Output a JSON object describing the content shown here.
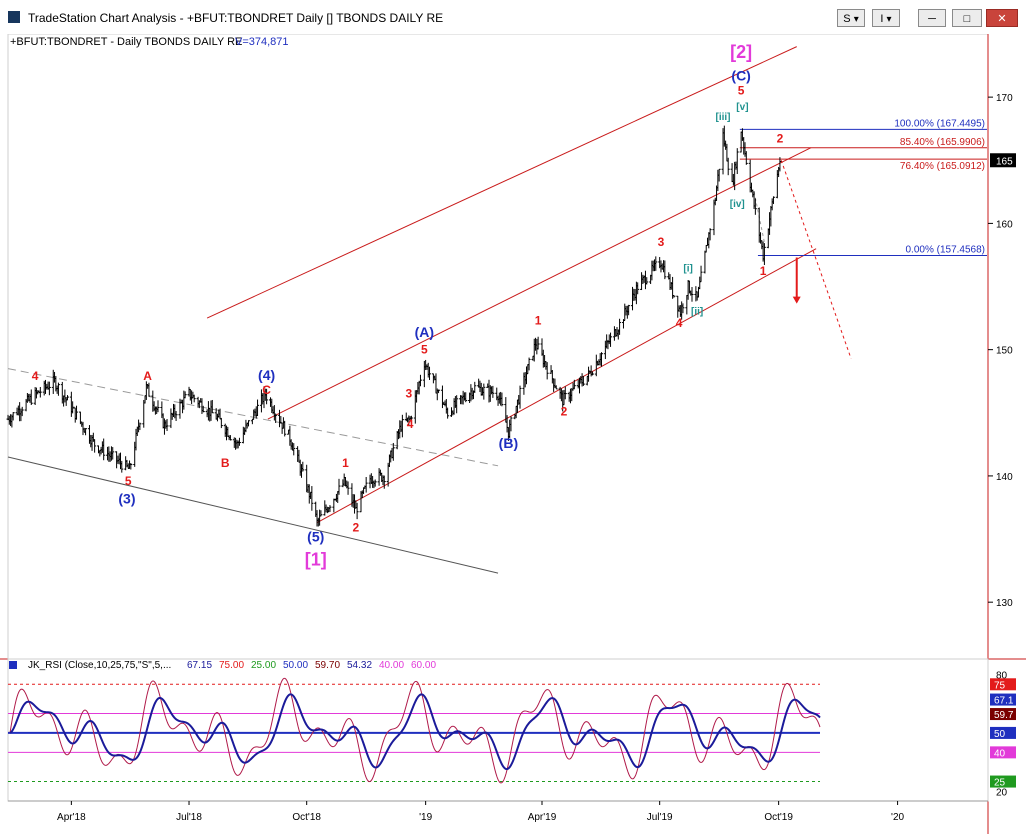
{
  "window": {
    "title": "TradeStation Chart Analysis - +BFUT:TBONDRET Daily [] TBONDS DAILY RE",
    "buttons": {
      "s_label": "S",
      "i_label": "I",
      "minimize_label": "─",
      "maximize_label": "□",
      "close_label": "✕"
    },
    "icons": [
      "app-icon",
      "dropdown-chevron-icon",
      "minimize-icon",
      "maximize-icon",
      "close-icon"
    ]
  },
  "chart_header": {
    "symbol": "+BFUT:TBONDRET - Daily  TBONDS DAILY RE",
    "volume": "V=374,871"
  },
  "colors": {
    "price_bar": "#000000",
    "wave_red": "#e31b1b",
    "wave_blue": "#1f2fbf",
    "wave_magenta": "#e23ad9",
    "wave_teal": "#20928f",
    "channel_red": "#c91b1b",
    "fib_blue": "#1f2fbf",
    "rsi_fast": "#b01b4a",
    "rsi_slow": "#1b1b9a"
  },
  "chart_data": [
    {
      "type": "line",
      "subtype": "ohlc-bars",
      "y_axis": {
        "side": "right",
        "ticks": [
          130,
          140,
          150,
          160,
          170
        ],
        "range": [
          125.5,
          175
        ],
        "current_price_label": "165"
      },
      "x_axis": {
        "ticks": [
          "Apr'18",
          "Jul'18",
          "Oct'18",
          "'19",
          "Apr'19",
          "Jul'19",
          "Oct'19",
          "'20"
        ]
      },
      "grid": false,
      "price_path": [
        {
          "x": "2018-02-12",
          "y": 144.5
        },
        {
          "x": "2018-03-06",
          "y": 146.5
        },
        {
          "x": "2018-03-20",
          "y": 147.5
        },
        {
          "x": "2018-04-20",
          "y": 142.5
        },
        {
          "x": "2018-05-17",
          "y": 140.5
        },
        {
          "x": "2018-05-30",
          "y": 147.0
        },
        {
          "x": "2018-06-13",
          "y": 144.0
        },
        {
          "x": "2018-07-02",
          "y": 146.5
        },
        {
          "x": "2018-07-25",
          "y": 144.5
        },
        {
          "x": "2018-08-08",
          "y": 142.5
        },
        {
          "x": "2018-08-30",
          "y": 146.5
        },
        {
          "x": "2018-09-18",
          "y": 143.0
        },
        {
          "x": "2018-10-05",
          "y": 138.0
        },
        {
          "x": "2018-10-09",
          "y": 136.3
        },
        {
          "x": "2018-10-30",
          "y": 139.5
        },
        {
          "x": "2018-11-08",
          "y": 137.3
        },
        {
          "x": "2018-11-19",
          "y": 139.8
        },
        {
          "x": "2018-11-30",
          "y": 140.0
        },
        {
          "x": "2018-12-13",
          "y": 144.0
        },
        {
          "x": "2018-12-20",
          "y": 144.5
        },
        {
          "x": "2018-12-31",
          "y": 149.0
        },
        {
          "x": "2019-01-18",
          "y": 145.0
        },
        {
          "x": "2019-02-08",
          "y": 147.0
        },
        {
          "x": "2019-02-26",
          "y": 146.5
        },
        {
          "x": "2019-03-06",
          "y": 143.5
        },
        {
          "x": "2019-03-27",
          "y": 150.5
        },
        {
          "x": "2019-04-17",
          "y": 146.0
        },
        {
          "x": "2019-05-07",
          "y": 148.0
        },
        {
          "x": "2019-05-31",
          "y": 152.0
        },
        {
          "x": "2019-06-14",
          "y": 155.0
        },
        {
          "x": "2019-07-02",
          "y": 157.0
        },
        {
          "x": "2019-07-17",
          "y": 153.0
        },
        {
          "x": "2019-07-23",
          "y": 155.0
        },
        {
          "x": "2019-07-30",
          "y": 154.0
        },
        {
          "x": "2019-08-13",
          "y": 162.0
        },
        {
          "x": "2019-08-19",
          "y": 167.0
        },
        {
          "x": "2019-08-26",
          "y": 163.0
        },
        {
          "x": "2019-09-02",
          "y": 167.4
        },
        {
          "x": "2019-09-11",
          "y": 162.0
        },
        {
          "x": "2019-09-19",
          "y": 157.5
        },
        {
          "x": "2019-09-25",
          "y": 161.0
        },
        {
          "x": "2019-10-02",
          "y": 165.0
        }
      ],
      "fib_levels": [
        {
          "label": "100.00% (167.4495)",
          "value": 167.4495,
          "color": "#1f2fbf"
        },
        {
          "label": "85.40% (165.9906)",
          "value": 165.9906,
          "color": "#c91b1b"
        },
        {
          "label": "76.40% (165.0912)",
          "value": 165.0912,
          "color": "#c91b1b"
        },
        {
          "label": "0.00% (157.4568)",
          "value": 157.4568,
          "color": "#1f2fbf"
        }
      ],
      "wave_labels": [
        {
          "text": "4",
          "x": "2018-03-05",
          "y": 147.6,
          "color": "#e31b1b",
          "size": 12
        },
        {
          "text": "A",
          "x": "2018-05-31",
          "y": 147.6,
          "color": "#e31b1b",
          "size": 12
        },
        {
          "text": "5",
          "x": "2018-05-16",
          "y": 139.3,
          "color": "#e31b1b",
          "size": 12
        },
        {
          "text": "(3)",
          "x": "2018-05-15",
          "y": 137.8,
          "color": "#1f2fbf",
          "size": 14
        },
        {
          "text": "B",
          "x": "2018-07-30",
          "y": 140.7,
          "color": "#e31b1b",
          "size": 12
        },
        {
          "text": "(4)",
          "x": "2018-08-31",
          "y": 147.6,
          "color": "#1f2fbf",
          "size": 14
        },
        {
          "text": "C",
          "x": "2018-08-31",
          "y": 146.5,
          "color": "#e31b1b",
          "size": 12
        },
        {
          "text": "(5)",
          "x": "2018-10-08",
          "y": 134.8,
          "color": "#1f2fbf",
          "size": 14
        },
        {
          "text": "[1]",
          "x": "2018-10-08",
          "y": 132.9,
          "color": "#e23ad9",
          "size": 18
        },
        {
          "text": "1",
          "x": "2018-10-31",
          "y": 140.7,
          "color": "#e31b1b",
          "size": 12
        },
        {
          "text": "2",
          "x": "2018-11-08",
          "y": 135.6,
          "color": "#e31b1b",
          "size": 12
        },
        {
          "text": "3",
          "x": "2018-12-19",
          "y": 146.2,
          "color": "#e31b1b",
          "size": 12
        },
        {
          "text": "4",
          "x": "2018-12-20",
          "y": 143.8,
          "color": "#e31b1b",
          "size": 12
        },
        {
          "text": "5",
          "x": "2018-12-31",
          "y": 149.7,
          "color": "#e31b1b",
          "size": 12
        },
        {
          "text": "(A)",
          "x": "2018-12-31",
          "y": 151.0,
          "color": "#1f2fbf",
          "size": 14
        },
        {
          "text": "(B)",
          "x": "2019-03-06",
          "y": 142.2,
          "color": "#1f2fbf",
          "size": 14
        },
        {
          "text": "1",
          "x": "2019-03-29",
          "y": 152.0,
          "color": "#e31b1b",
          "size": 12
        },
        {
          "text": "2",
          "x": "2019-04-18",
          "y": 144.8,
          "color": "#e31b1b",
          "size": 12
        },
        {
          "text": "3",
          "x": "2019-07-02",
          "y": 158.2,
          "color": "#e31b1b",
          "size": 12
        },
        {
          "text": "4",
          "x": "2019-07-16",
          "y": 151.8,
          "color": "#e31b1b",
          "size": 12
        },
        {
          "text": "[i]",
          "x": "2019-07-23",
          "y": 156.2,
          "color": "#20928f",
          "size": 10
        },
        {
          "text": "[ii]",
          "x": "2019-07-30",
          "y": 152.8,
          "color": "#20928f",
          "size": 10
        },
        {
          "text": "[iii]",
          "x": "2019-08-19",
          "y": 168.2,
          "color": "#20928f",
          "size": 10
        },
        {
          "text": "[iv]",
          "x": "2019-08-30",
          "y": 161.3,
          "color": "#20928f",
          "size": 10
        },
        {
          "text": "[v]",
          "x": "2019-09-03",
          "y": 169.0,
          "color": "#20928f",
          "size": 10
        },
        {
          "text": "5",
          "x": "2019-09-02",
          "y": 170.2,
          "color": "#e31b1b",
          "size": 12
        },
        {
          "text": "(C)",
          "x": "2019-09-02",
          "y": 171.3,
          "color": "#1f2fbf",
          "size": 14
        },
        {
          "text": "[2]",
          "x": "2019-09-02",
          "y": 173.1,
          "color": "#e23ad9",
          "size": 18
        },
        {
          "text": "2",
          "x": "2019-10-02",
          "y": 166.4,
          "color": "#e31b1b",
          "size": 12
        },
        {
          "text": "1",
          "x": "2019-09-19",
          "y": 155.9,
          "color": "#e31b1b",
          "size": 12
        }
      ],
      "channels": [
        {
          "from": {
            "x": "2018-02-12",
            "y": 148.5
          },
          "to": {
            "x": "2019-02-26",
            "y": 140.8
          },
          "style": "dashed",
          "color": "#9a9a9a"
        },
        {
          "from": {
            "x": "2018-02-12",
            "y": 141.5
          },
          "to": {
            "x": "2019-02-26",
            "y": 132.3
          },
          "style": "solid",
          "color": "#555555"
        },
        {
          "from": {
            "x": "2018-07-16",
            "y": 152.5
          },
          "to": {
            "x": "2019-10-15",
            "y": 174.0
          },
          "style": "solid",
          "color": "#c91b1b"
        },
        {
          "from": {
            "x": "2018-09-01",
            "y": 144.5
          },
          "to": {
            "x": "2019-10-26",
            "y": 166.0
          },
          "style": "solid",
          "color": "#c91b1b"
        },
        {
          "from": {
            "x": "2018-10-09",
            "y": 136.3
          },
          "to": {
            "x": "2019-10-30",
            "y": 158.0
          },
          "style": "solid",
          "color": "#c91b1b"
        },
        {
          "from": {
            "x": "2019-10-03",
            "y": 165.0
          },
          "to": {
            "x": "2019-11-26",
            "y": 149.3
          },
          "style": "dotted",
          "color": "#e31b1b"
        },
        {
          "from": {
            "x": "2019-09-12",
            "y": 162.5
          },
          "to": {
            "x": "2019-09-20",
            "y": 158.5
          },
          "style": "dotted",
          "color": "#9a9a9a"
        }
      ],
      "arrow": {
        "x": "2019-10-15",
        "from_y": 157.3,
        "to_y": 153.8,
        "color": "#e31b1b"
      }
    },
    {
      "type": "line",
      "title": "JK_RSI (Close,10,25,75,\"S\",5,...",
      "readouts": [
        {
          "text": "67.15",
          "color": "#1b1b9a"
        },
        {
          "text": "75.00",
          "color": "#e31b1b"
        },
        {
          "text": "25.00",
          "color": "#1f9a1f"
        },
        {
          "text": "50.00",
          "color": "#1f2fbf"
        },
        {
          "text": "59.70",
          "color": "#7a0000"
        },
        {
          "text": "54.32",
          "color": "#1b1b9a"
        },
        {
          "text": "40.00",
          "color": "#e23ad9"
        },
        {
          "text": "60.00",
          "color": "#e23ad9"
        }
      ],
      "y_axis": {
        "range": [
          15,
          88
        ],
        "ticks": [
          20,
          80
        ],
        "level_tags": [
          {
            "text": "75",
            "value": 75,
            "bg": "#e31b1b"
          },
          {
            "text": "67.1",
            "value": 67.15,
            "bg": "#1f2fbf"
          },
          {
            "text": "59.7",
            "value": 59.7,
            "bg": "#7a0000"
          },
          {
            "text": "50",
            "value": 50,
            "bg": "#1f2fbf"
          },
          {
            "text": "40",
            "value": 40,
            "bg": "#e23ad9"
          },
          {
            "text": "25",
            "value": 25,
            "bg": "#1f9a1f"
          }
        ]
      },
      "levels": [
        {
          "value": 75,
          "color": "#e31b1b",
          "style": "dashed"
        },
        {
          "value": 60,
          "color": "#e23ad9",
          "style": "solid"
        },
        {
          "value": 50,
          "color": "#1f2fbf",
          "style": "solid"
        },
        {
          "value": 40,
          "color": "#e23ad9",
          "style": "solid"
        },
        {
          "value": 25,
          "color": "#1f9a1f",
          "style": "dashed"
        }
      ]
    }
  ]
}
